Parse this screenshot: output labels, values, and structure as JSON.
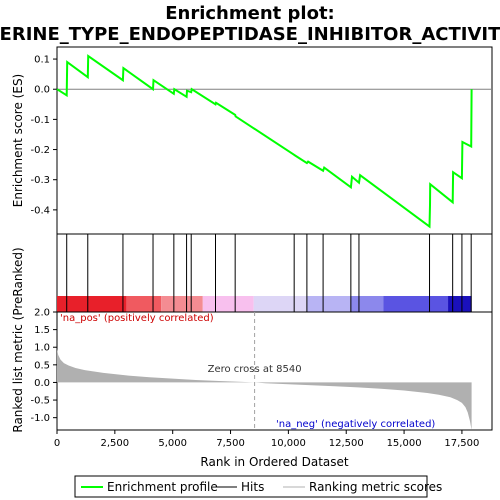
{
  "chart_data": {
    "type": "line",
    "title_line1": "Enrichment plot:",
    "title_line2": "SERINE_TYPE_ENDOPEPTIDASE_INHIBITOR_ACTIVITY",
    "top_panel": {
      "ylabel": "Enrichment score (ES)",
      "ylim": [
        -0.48,
        0.14
      ],
      "yticks": [
        0.1,
        0.0,
        -0.1,
        -0.2,
        -0.3,
        -0.4
      ],
      "ytick_labels": [
        "0.1",
        "0.0",
        "-0.1",
        "-0.2",
        "-0.3",
        "-0.4"
      ],
      "series": [
        {
          "name": "Enrichment profile",
          "color": "#00ff00",
          "x": [
            0,
            420,
            440,
            1330,
            1350,
            2850,
            2870,
            4150,
            4170,
            5050,
            5070,
            5600,
            5620,
            5800,
            5820,
            6850,
            6870,
            7700,
            7720,
            10200,
            10300,
            10800,
            10850,
            11500,
            11550,
            12700,
            12750,
            13050,
            13100,
            16100,
            16120,
            16130,
            17100,
            17120,
            17500,
            17520,
            17900,
            17920
          ],
          "y": [
            0.0,
            -0.02,
            0.09,
            0.04,
            0.11,
            0.03,
            0.07,
            0.0,
            0.03,
            -0.015,
            0.0,
            -0.025,
            -0.005,
            -0.01,
            0.0,
            -0.05,
            -0.045,
            -0.085,
            -0.09,
            -0.215,
            -0.22,
            -0.245,
            -0.24,
            -0.27,
            -0.26,
            -0.325,
            -0.29,
            -0.31,
            -0.285,
            -0.455,
            -0.385,
            -0.315,
            -0.375,
            -0.275,
            -0.295,
            -0.175,
            -0.19,
            0.0
          ]
        }
      ]
    },
    "hits_panel": {
      "name": "Hits",
      "hit_positions": [
        420,
        1330,
        2850,
        4150,
        5050,
        5600,
        5800,
        6850,
        7700,
        10250,
        10800,
        11500,
        12700,
        13050,
        16100,
        17100,
        17500,
        17900
      ]
    },
    "colorbar_segments": [
      {
        "from": 0,
        "to": 3000,
        "color": "#e8202a"
      },
      {
        "from": 3000,
        "to": 4500,
        "color": "#f05a60"
      },
      {
        "from": 4500,
        "to": 6300,
        "color": "#f48c92"
      },
      {
        "from": 6300,
        "to": 8500,
        "color": "#f8c0ee"
      },
      {
        "from": 8500,
        "to": 10800,
        "color": "#ddd6f6"
      },
      {
        "from": 10800,
        "to": 12700,
        "color": "#b8b4f4"
      },
      {
        "from": 12700,
        "to": 14100,
        "color": "#8c88ec"
      },
      {
        "from": 14100,
        "to": 16900,
        "color": "#5a54e2"
      },
      {
        "from": 16900,
        "to": 17920,
        "color": "#1a10bc"
      }
    ],
    "bottom_panel": {
      "ylabel": "Ranked list metric (PreRanked)",
      "ylim": [
        -1.35,
        2.0
      ],
      "yticks": [
        2.0,
        1.5,
        1.0,
        0.5,
        0.0,
        -0.5,
        -1.0
      ],
      "ytick_labels": [
        "2.0",
        "1.5",
        "1.0",
        "0.5",
        "0.0",
        "-0.5",
        "-1.0"
      ],
      "series": [
        {
          "name": "Ranking metric scores",
          "color": "#b0b0b0",
          "x": [
            0,
            50,
            150,
            300,
            500,
            800,
            1200,
            2000,
            3000,
            4000,
            5000,
            6000,
            7000,
            8000,
            8540,
            9000,
            10000,
            11000,
            12000,
            13000,
            14000,
            15000,
            16000,
            16500,
            17000,
            17300,
            17500,
            17650,
            17750,
            17850,
            17920
          ],
          "y": [
            0.95,
            0.78,
            0.65,
            0.55,
            0.48,
            0.41,
            0.35,
            0.27,
            0.2,
            0.15,
            0.11,
            0.07,
            0.04,
            0.015,
            0.0,
            -0.02,
            -0.05,
            -0.08,
            -0.11,
            -0.14,
            -0.18,
            -0.23,
            -0.3,
            -0.35,
            -0.42,
            -0.5,
            -0.58,
            -0.7,
            -0.85,
            -1.1,
            -1.35
          ]
        }
      ],
      "annotations": {
        "pos_label": "'na_pos' (positively correlated)",
        "neg_label": "'na_neg' (negatively correlated)",
        "zero_cross": "Zero cross at 8540",
        "zero_cross_x": 8540
      }
    },
    "xaxis": {
      "label": "Rank in Ordered Dataset",
      "xlim": [
        0,
        18800
      ],
      "ticks": [
        0,
        2500,
        5000,
        7500,
        10000,
        12500,
        15000,
        17500
      ],
      "tick_labels": [
        "0",
        "2,500",
        "5,000",
        "7,500",
        "10,000",
        "12,500",
        "15,000",
        "17,500"
      ]
    },
    "legend": {
      "placement": "bottom",
      "entries": [
        {
          "label": "Enrichment profile",
          "color": "#00ff00"
        },
        {
          "label": "Hits",
          "color": "#000000"
        },
        {
          "label": "Ranking metric scores",
          "color": "#b0b0b0"
        }
      ]
    }
  }
}
